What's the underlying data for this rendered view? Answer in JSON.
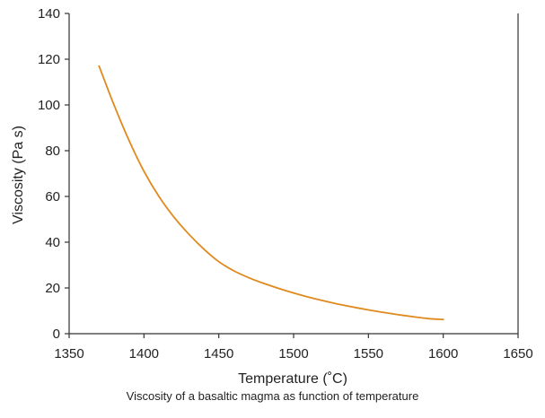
{
  "caption": "Viscosity of a basaltic magma as function of temperature",
  "chart_data": {
    "type": "line",
    "title": "",
    "xlabel": "Temperature (˚C)",
    "ylabel": "Viscosity (Pa s)",
    "xlim": [
      1350,
      1650
    ],
    "ylim": [
      0,
      140
    ],
    "xticks": [
      1350,
      1400,
      1450,
      1500,
      1550,
      1600,
      1650
    ],
    "yticks": [
      0,
      20,
      40,
      60,
      80,
      100,
      120,
      140
    ],
    "grid": false,
    "legend": "none",
    "series": [
      {
        "color": "#E08A1E",
        "x": [
          1370,
          1380,
          1390,
          1400,
          1410,
          1420,
          1430,
          1440,
          1450,
          1460,
          1470,
          1480,
          1490,
          1500,
          1510,
          1520,
          1530,
          1540,
          1550,
          1560,
          1570,
          1580,
          1590,
          1600
        ],
        "y": [
          117,
          100,
          84.5,
          71,
          60,
          51,
          43.5,
          37,
          31.5,
          27.5,
          24.5,
          22,
          19.8,
          17.8,
          16,
          14.4,
          12.9,
          11.6,
          10.4,
          9.3,
          8.3,
          7.4,
          6.6,
          6.2
        ]
      }
    ]
  }
}
